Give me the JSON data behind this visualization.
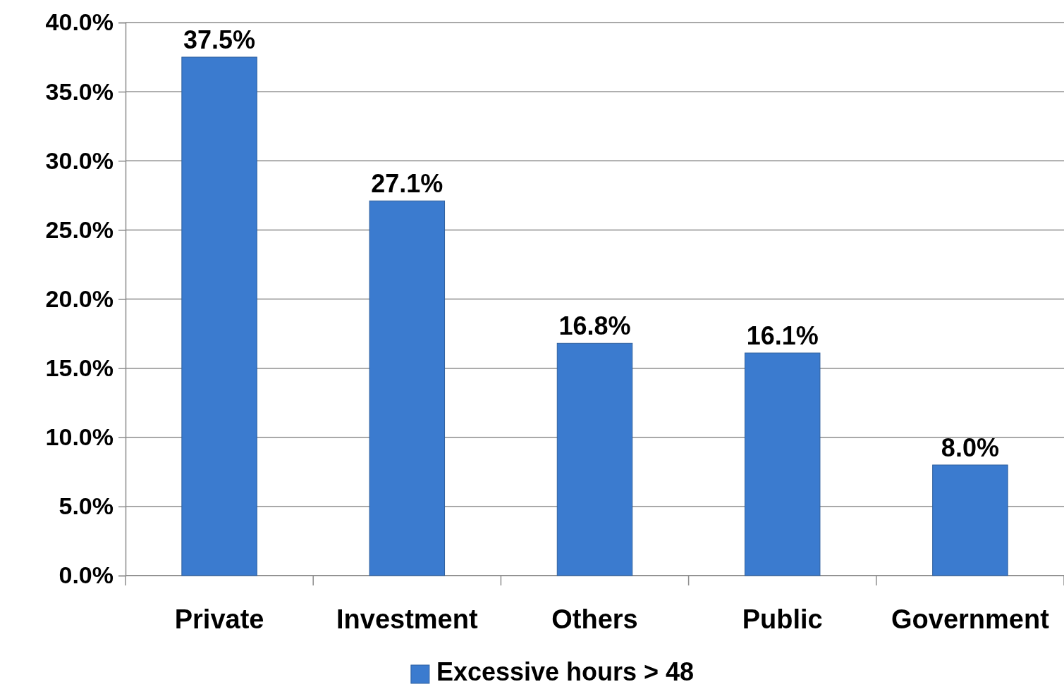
{
  "chart_data": {
    "type": "bar",
    "categories": [
      "Private",
      "Investment",
      "Others",
      "Public",
      "Government"
    ],
    "series": [
      {
        "name": "Excessive hours > 48",
        "color": "#3b7bcf",
        "values": [
          37.5,
          27.1,
          16.8,
          16.1,
          8.0
        ],
        "value_labels": [
          "37.5%",
          "27.1%",
          "16.8%",
          "16.1%",
          "8.0%"
        ]
      }
    ],
    "ylim": [
      0,
      40
    ],
    "yticks": [
      {
        "value": 0,
        "label": "0.0%"
      },
      {
        "value": 5,
        "label": "5.0%"
      },
      {
        "value": 10,
        "label": "10.0%"
      },
      {
        "value": 15,
        "label": "15.0%"
      },
      {
        "value": 20,
        "label": "20.0%"
      },
      {
        "value": 25,
        "label": "25.0%"
      },
      {
        "value": 30,
        "label": "30.0%"
      },
      {
        "value": 35,
        "label": "35.0%"
      },
      {
        "value": 40,
        "label": "40.0%"
      }
    ],
    "grid": "y",
    "legend": "bottom"
  }
}
